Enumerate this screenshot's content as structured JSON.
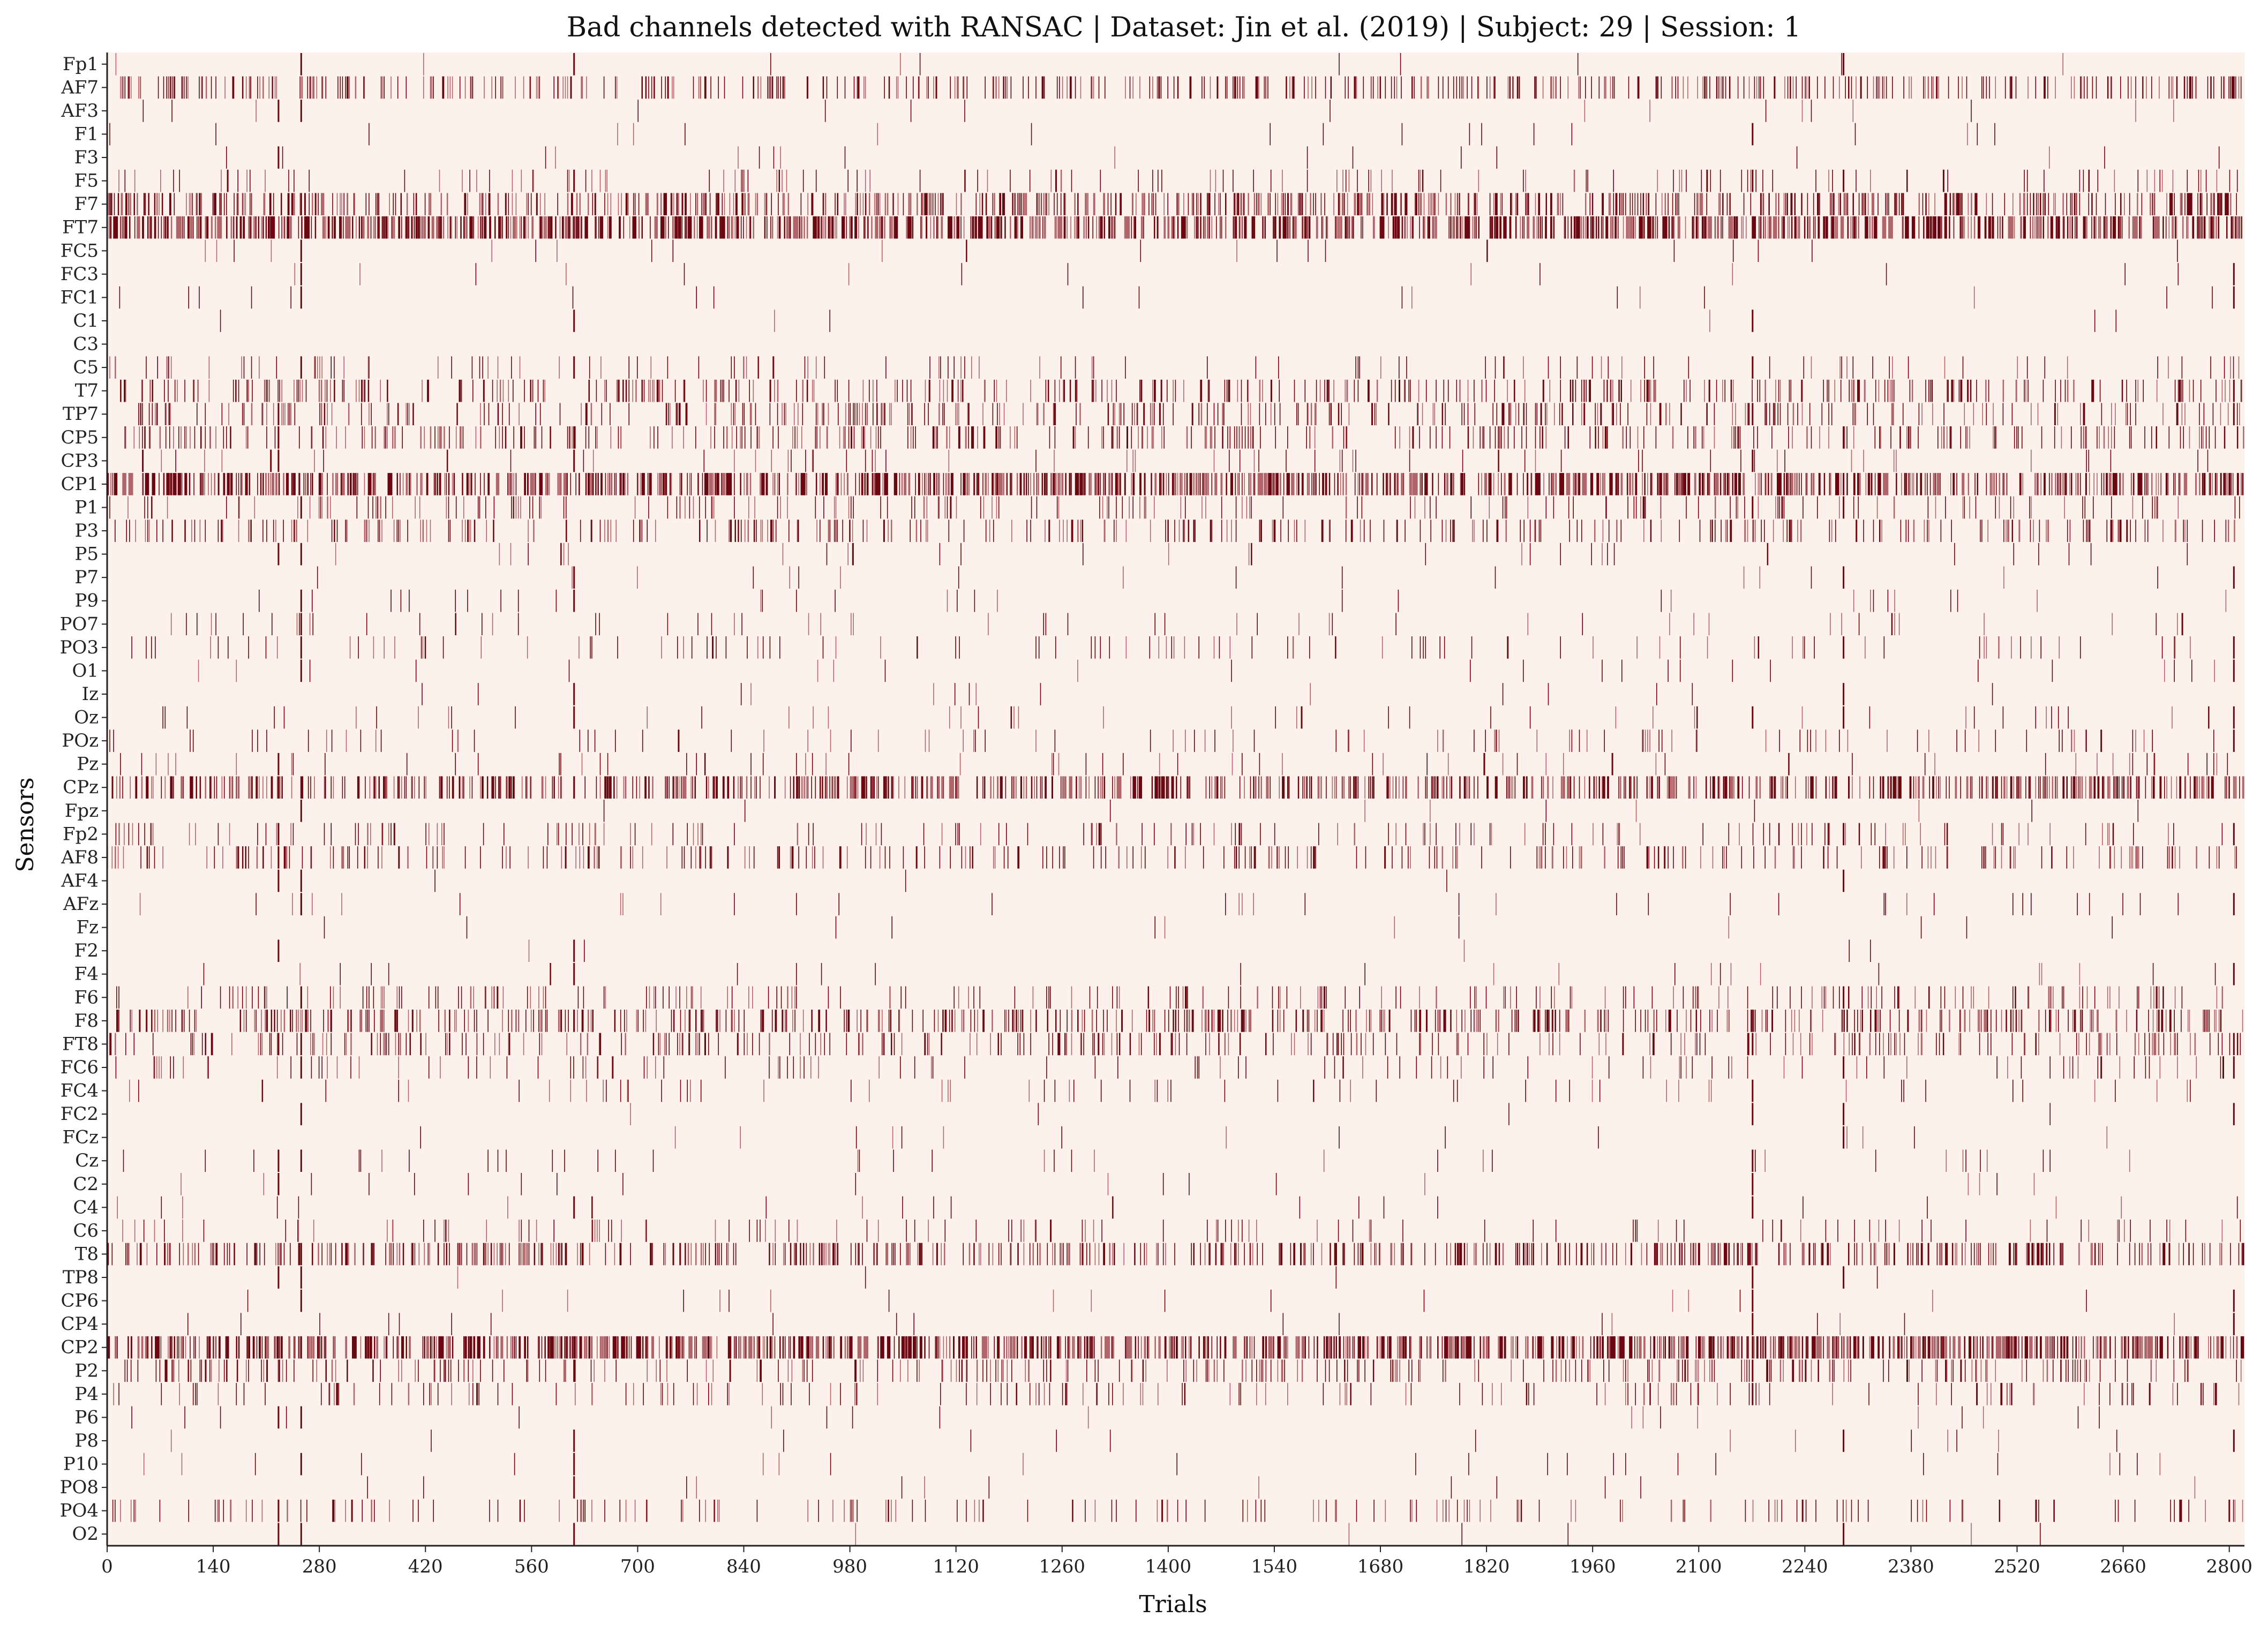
{
  "chart_data": {
    "type": "heatmap",
    "title": "Bad channels detected with RANSAC  |  Dataset: Jin et al. (2019) | Subject: 29 | Session: 1",
    "xlabel": "Trials",
    "ylabel": "Sensors",
    "xlim": [
      0,
      2820
    ],
    "x_ticks": [
      0,
      140,
      280,
      420,
      560,
      700,
      840,
      980,
      1120,
      1260,
      1400,
      1540,
      1680,
      1820,
      1960,
      2100,
      2240,
      2380,
      2520,
      2660,
      2800
    ],
    "sensors": [
      "Fp1",
      "AF7",
      "AF3",
      "F1",
      "F3",
      "F5",
      "F7",
      "FT7",
      "FC5",
      "FC3",
      "FC1",
      "C1",
      "C3",
      "C5",
      "T7",
      "TP7",
      "CP5",
      "CP3",
      "CP1",
      "P1",
      "P3",
      "P5",
      "P7",
      "P9",
      "PO7",
      "PO3",
      "O1",
      "Iz",
      "Oz",
      "POz",
      "Pz",
      "CPz",
      "Fpz",
      "Fp2",
      "AF8",
      "AF4",
      "AFz",
      "Fz",
      "F2",
      "F4",
      "F6",
      "F8",
      "FT8",
      "FC6",
      "FC4",
      "FC2",
      "FCz",
      "Cz",
      "C2",
      "C4",
      "C6",
      "T8",
      "TP8",
      "CP6",
      "CP4",
      "CP2",
      "P2",
      "P4",
      "P6",
      "P8",
      "P10",
      "PO8",
      "PO4",
      "O2"
    ],
    "values_encoding": "binary: 1 = channel marked bad in trial, 0 = good",
    "colors": {
      "background": "#fdf1ec",
      "bad": "#6b0710",
      "bad_light": "#b0656b"
    },
    "channel_bad_density": [
      0.002,
      0.14,
      0.008,
      0.005,
      0.006,
      0.05,
      0.22,
      0.33,
      0.01,
      0.004,
      0.004,
      0.003,
      0.0,
      0.03,
      0.12,
      0.12,
      0.12,
      0.02,
      0.3,
      0.06,
      0.1,
      0.015,
      0.005,
      0.008,
      0.02,
      0.04,
      0.006,
      0.006,
      0.02,
      0.03,
      0.02,
      0.23,
      0.004,
      0.05,
      0.09,
      0.002,
      0.01,
      0.003,
      0.003,
      0.01,
      0.07,
      0.16,
      0.1,
      0.03,
      0.02,
      0.002,
      0.005,
      0.01,
      0.01,
      0.01,
      0.03,
      0.18,
      0.002,
      0.006,
      0.004,
      0.32,
      0.1,
      0.05,
      0.01,
      0.008,
      0.006,
      0.004,
      0.06,
      0.002
    ],
    "vertical_streak_trials": [
      225,
      255,
      615,
      2170,
      2290,
      2805
    ]
  }
}
